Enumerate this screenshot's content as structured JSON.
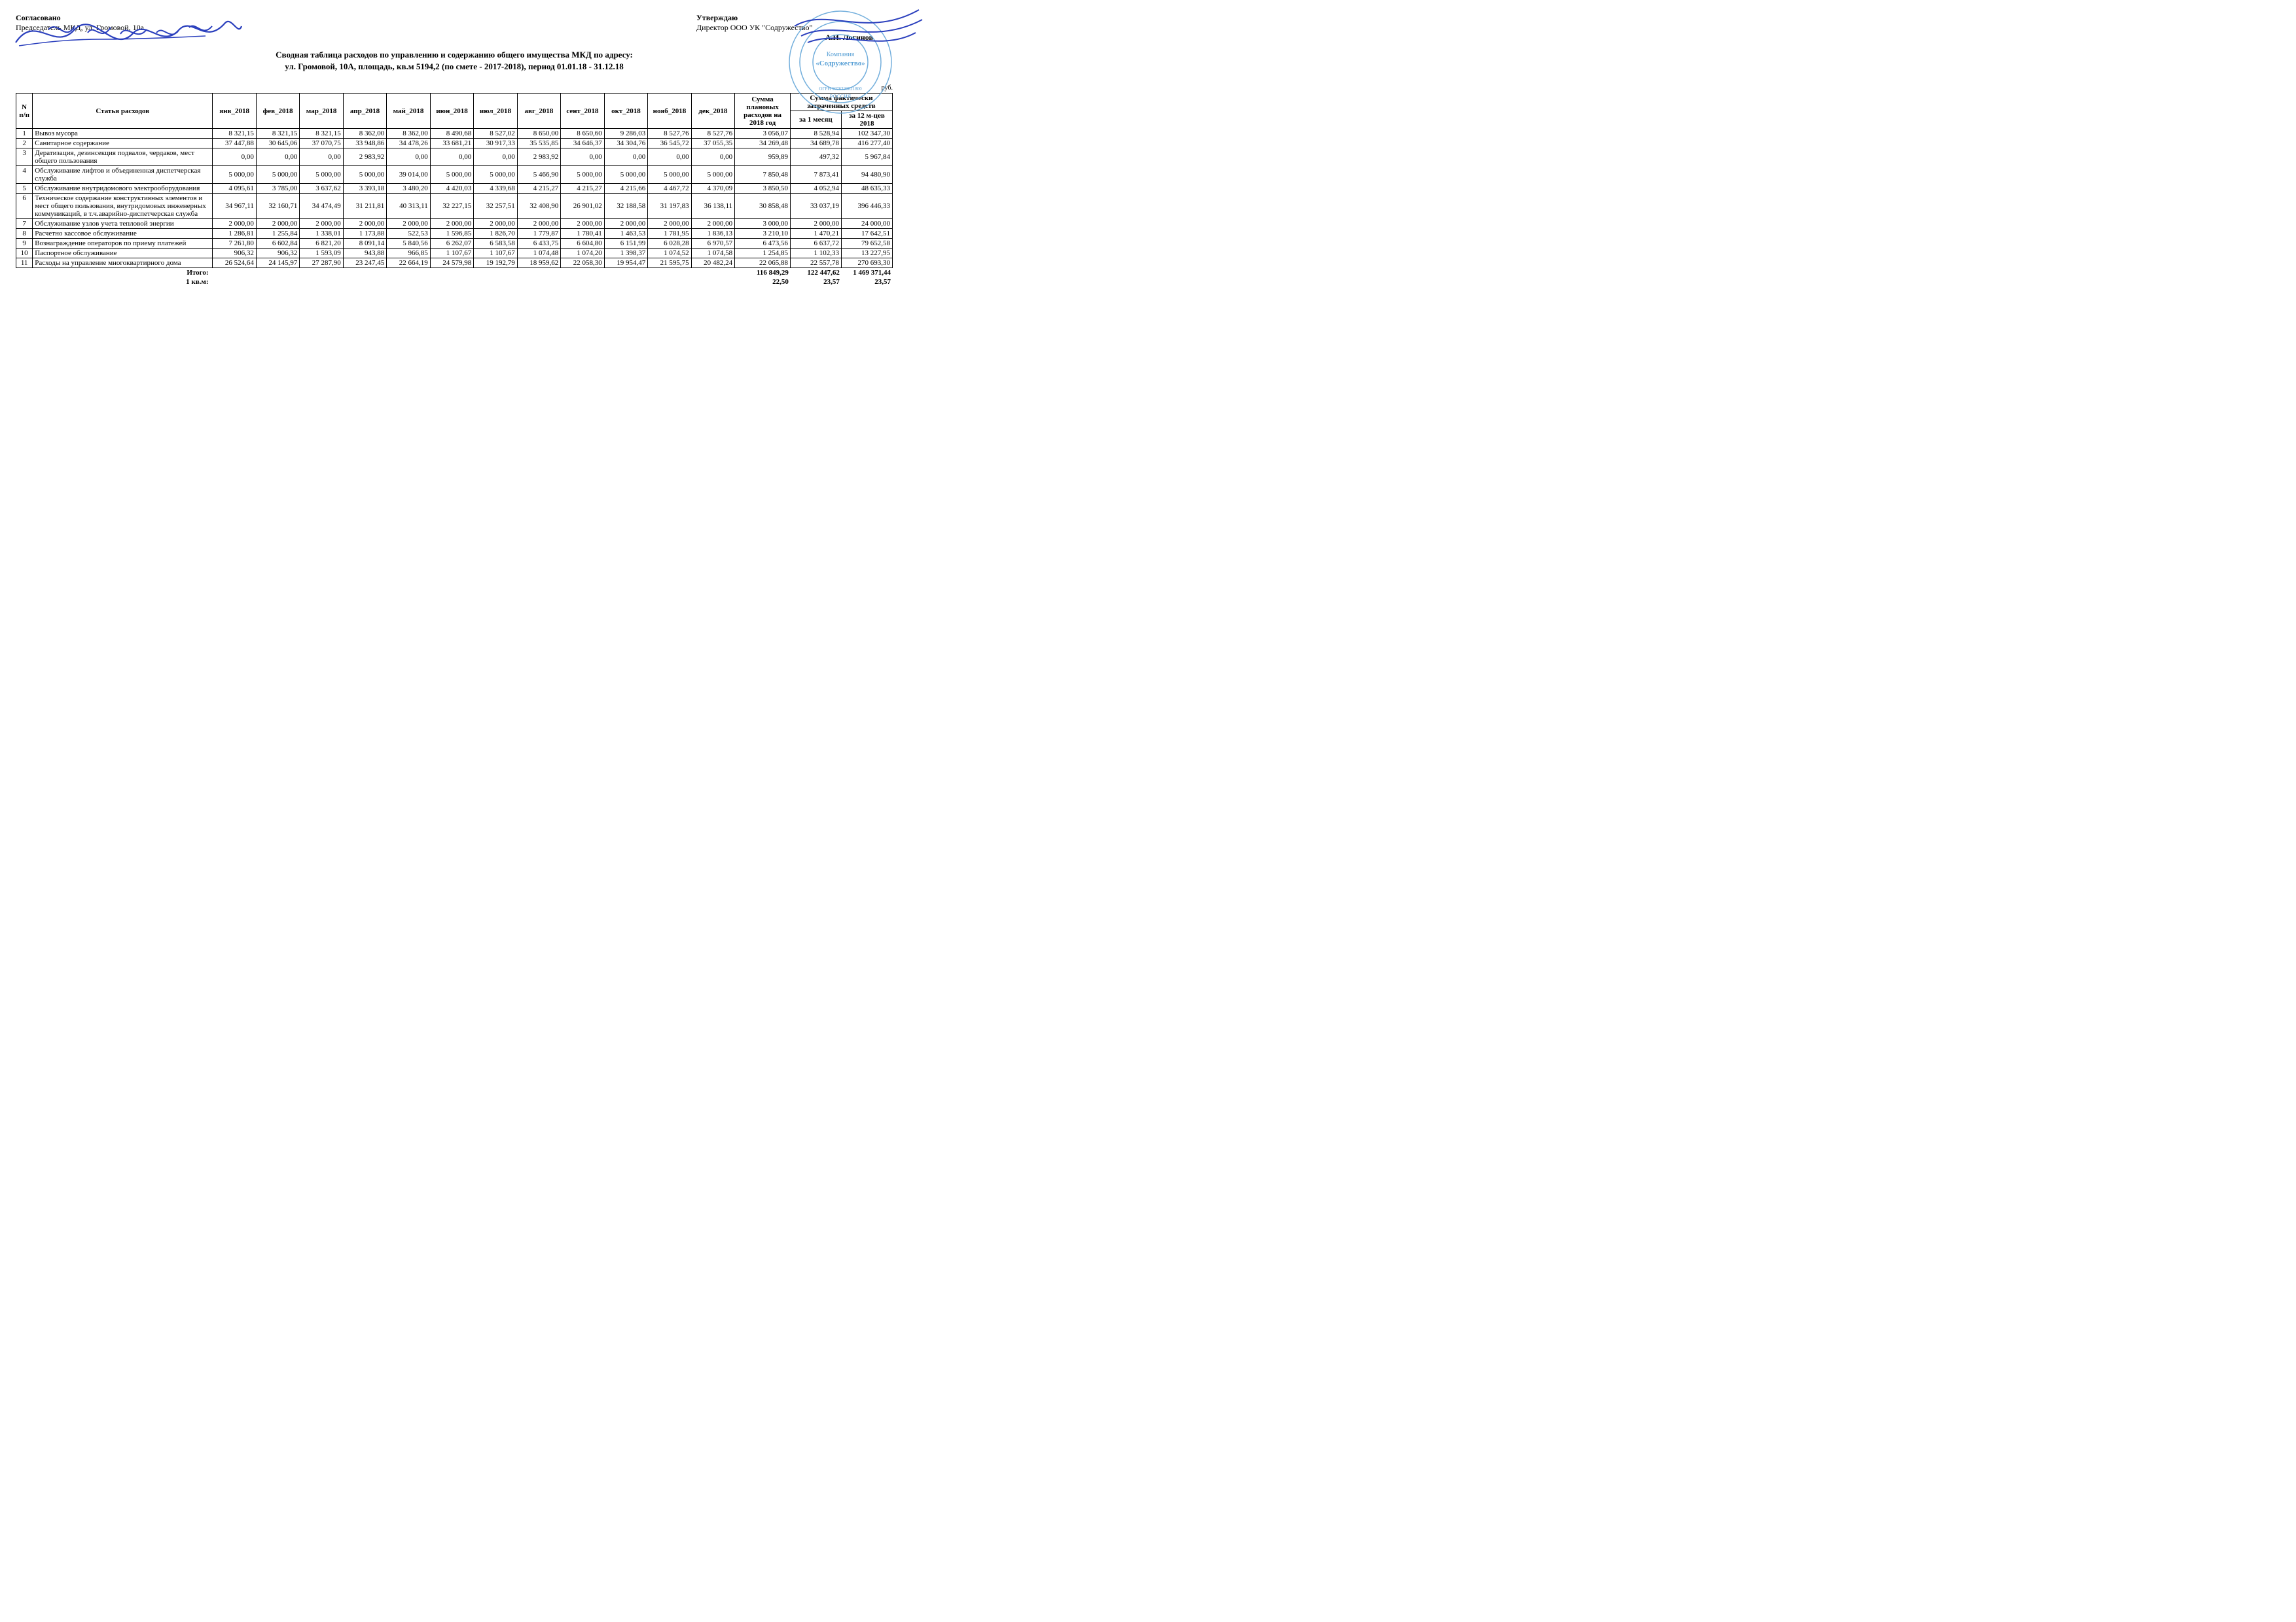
{
  "header": {
    "left_approve_label": "Согласовано",
    "left_chair_line": "Председатель МКД, ул. Громовой, 10а",
    "right_approve_label": "Утверждаю",
    "right_director_line": "Директор ООО УК \"Содружество\"",
    "right_name": "А.И. Логинов",
    "stamp_lines": [
      "Компания",
      "«Содружество»",
      "ОГРН 1076320021800",
      "РОССИЯ"
    ]
  },
  "title": {
    "line1": "Сводная таблица расходов по управлению и содержанию общего имущества МКД по адресу:",
    "line2": "ул. Громовой, 10А, площадь, кв.м 5194,2 (по смете - 2017-2018), период 01.01.18 - 31.12.18"
  },
  "currency_label": "руб.",
  "columns": {
    "n": "N п/п",
    "item": "Статья расходов",
    "months": [
      "янв_2018",
      "фев_2018",
      "мар_2018",
      "апр_2018",
      "май_2018",
      "июн_2018",
      "июл_2018",
      "авг_2018",
      "сент_2018",
      "окт_2018",
      "нояб_2018",
      "дек_2018"
    ],
    "plan": "Сумма плановых расходов на 2018 год",
    "fact_group": "Сумма фактически затраченных средств",
    "fact_month": "за 1 месяц",
    "fact_year": "за 12 м-цев 2018"
  },
  "rows": [
    {
      "n": "1",
      "name": "Вывоз мусора",
      "m": [
        "8 321,15",
        "8 321,15",
        "8 321,15",
        "8 362,00",
        "8 362,00",
        "8 490,68",
        "8 527,02",
        "8 650,00",
        "8 650,60",
        "9 286,03",
        "8 527,76",
        "8 527,76"
      ],
      "plan": "3 056,07",
      "f1": "8 528,94",
      "f12": "102 347,30"
    },
    {
      "n": "2",
      "name": "Санитарное содержание",
      "m": [
        "37 447,88",
        "30 645,06",
        "37 070,75",
        "33 948,86",
        "34 478,26",
        "33 681,21",
        "30 917,33",
        "35 535,85",
        "34 646,37",
        "34 304,76",
        "36 545,72",
        "37 055,35"
      ],
      "plan": "34 269,48",
      "f1": "34 689,78",
      "f12": "416 277,40"
    },
    {
      "n": "3",
      "name": "Дератизация, дезинсекция подвалов, чердаков, мест общего пользования",
      "m": [
        "0,00",
        "0,00",
        "0,00",
        "2 983,92",
        "0,00",
        "0,00",
        "0,00",
        "2 983,92",
        "0,00",
        "0,00",
        "0,00",
        "0,00"
      ],
      "plan": "959,89",
      "f1": "497,32",
      "f12": "5 967,84"
    },
    {
      "n": "4",
      "name": "Обслуживание лифтов и объединенная диспетчерская служба",
      "m": [
        "5 000,00",
        "5 000,00",
        "5 000,00",
        "5 000,00",
        "39 014,00",
        "5 000,00",
        "5 000,00",
        "5 466,90",
        "5 000,00",
        "5 000,00",
        "5 000,00",
        "5 000,00"
      ],
      "plan": "7 850,48",
      "f1": "7 873,41",
      "f12": "94 480,90"
    },
    {
      "n": "5",
      "name": "Обслуживание внутридомового электрооборудования",
      "m": [
        "4 095,61",
        "3 785,00",
        "3 637,62",
        "3 393,18",
        "3 480,20",
        "4 420,03",
        "4 339,68",
        "4 215,27",
        "4 215,27",
        "4 215,66",
        "4 467,72",
        "4 370,09"
      ],
      "plan": "3 850,50",
      "f1": "4 052,94",
      "f12": "48 635,33"
    },
    {
      "n": "6",
      "name": "Техническое содержание конструктивных элементов и мест общего пользования, внутридомовых инженерных коммуникаций, в т.ч.аварийно-диспетчерская служба",
      "m": [
        "34 967,11",
        "32 160,71",
        "34 474,49",
        "31 211,81",
        "40 313,11",
        "32 227,15",
        "32 257,51",
        "32 408,90",
        "26 901,02",
        "32 188,58",
        "31 197,83",
        "36 138,11"
      ],
      "plan": "30 858,48",
      "f1": "33 037,19",
      "f12": "396 446,33"
    },
    {
      "n": "7",
      "name": "Обслуживание узлов учета тепловой энергии",
      "m": [
        "2 000,00",
        "2 000,00",
        "2 000,00",
        "2 000,00",
        "2 000,00",
        "2 000,00",
        "2 000,00",
        "2 000,00",
        "2 000,00",
        "2 000,00",
        "2 000,00",
        "2 000,00"
      ],
      "plan": "3 000,00",
      "f1": "2 000,00",
      "f12": "24 000,00"
    },
    {
      "n": "8",
      "name": "Расчетно кассовое обслуживание",
      "m": [
        "1 286,81",
        "1 255,84",
        "1 338,01",
        "1 173,88",
        "522,53",
        "1 596,85",
        "1 826,70",
        "1 779,87",
        "1 780,41",
        "1 463,53",
        "1 781,95",
        "1 836,13"
      ],
      "plan": "3 210,10",
      "f1": "1 470,21",
      "f12": "17 642,51"
    },
    {
      "n": "9",
      "name": "Вознаграждение операторов по приему платежей",
      "m": [
        "7 261,80",
        "6 602,84",
        "6 821,20",
        "8 091,14",
        "5 840,56",
        "6 262,07",
        "6 583,58",
        "6 433,75",
        "6 604,80",
        "6 151,99",
        "6 028,28",
        "6 970,57"
      ],
      "plan": "6 473,56",
      "f1": "6 637,72",
      "f12": "79 652,58"
    },
    {
      "n": "10",
      "name": "Паспортное обслуживание",
      "m": [
        "906,32",
        "906,32",
        "1 593,09",
        "943,88",
        "966,85",
        "1 107,67",
        "1 107,67",
        "1 074,48",
        "1 074,20",
        "1 398,37",
        "1 074,52",
        "1 074,58"
      ],
      "plan": "1 254,85",
      "f1": "1 102,33",
      "f12": "13 227,95"
    },
    {
      "n": "11",
      "name": "Расходы на управление многоквартирного дома",
      "m": [
        "26 524,64",
        "24 145,97",
        "27 287,90",
        "23 247,45",
        "22 664,19",
        "24 579,98",
        "19 192,79",
        "18 959,62",
        "22 058,30",
        "19 954,47",
        "21 595,75",
        "20 482,24"
      ],
      "plan": "22 065,88",
      "f1": "22 557,78",
      "f12": "270 693,30"
    }
  ],
  "totals": {
    "label_total": "Итого:",
    "label_sqm": "1 кв.м:",
    "plan_total": "116 849,29",
    "f1_total": "122 447,62",
    "f12_total": "1 469 371,44",
    "plan_sqm": "22,50",
    "f1_sqm": "23,57",
    "f12_sqm": "23,57"
  },
  "style": {
    "ink_blue": "#2a3fbd",
    "stamp_blue": "#5aa1d6"
  }
}
